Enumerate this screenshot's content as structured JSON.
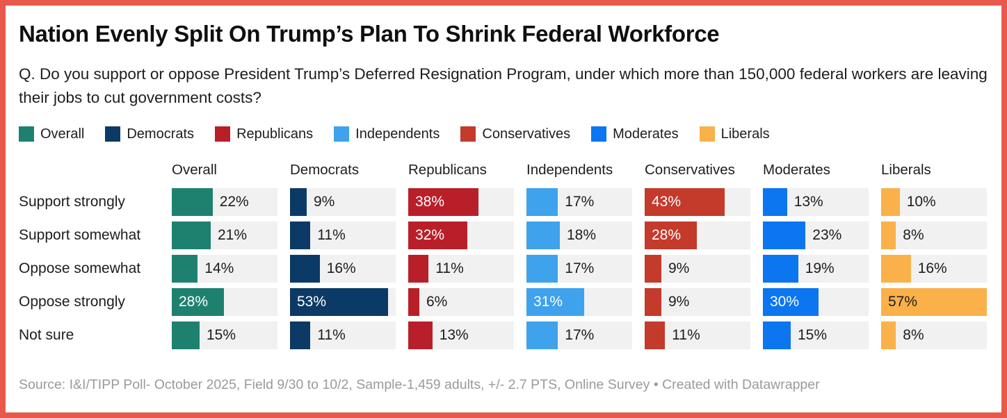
{
  "frame": {
    "border_color": "#e8594a",
    "background": "#ffffff"
  },
  "header": {
    "title": "Nation Evenly Split On Trump’s Plan To Shrink Federal Workforce",
    "question": "Q. Do you support or oppose President Trump’s Deferred Resignation Program, under which more than 150,000 federal workers are leaving their jobs to cut government costs?"
  },
  "chart_data": {
    "type": "bar",
    "layout": "small-multiples-horizontal-bars",
    "title": "Nation Evenly Split On Trump’s Plan To Shrink Federal Workforce",
    "categories": [
      "Support strongly",
      "Support somewhat",
      "Oppose somewhat",
      "Oppose strongly",
      "Not sure"
    ],
    "series": [
      {
        "name": "Overall",
        "color": "#1e8170",
        "inside_label_color": "#ffffff",
        "values": [
          22,
          21,
          14,
          28,
          15
        ]
      },
      {
        "name": "Democrats",
        "color": "#0c3a66",
        "inside_label_color": "#ffffff",
        "values": [
          9,
          11,
          16,
          53,
          11
        ]
      },
      {
        "name": "Republicans",
        "color": "#b91f29",
        "inside_label_color": "#ffffff",
        "values": [
          38,
          32,
          11,
          6,
          13
        ]
      },
      {
        "name": "Independents",
        "color": "#3ea2ed",
        "inside_label_color": "#ffffff",
        "values": [
          17,
          18,
          17,
          31,
          17
        ]
      },
      {
        "name": "Conservatives",
        "color": "#c43a2b",
        "inside_label_color": "#ffffff",
        "values": [
          43,
          28,
          9,
          9,
          11
        ]
      },
      {
        "name": "Moderates",
        "color": "#0b76f0",
        "inside_label_color": "#ffffff",
        "values": [
          13,
          23,
          19,
          30,
          15
        ]
      },
      {
        "name": "Liberals",
        "color": "#fab14a",
        "inside_label_color": "#1d1d1d",
        "values": [
          10,
          8,
          16,
          57,
          8
        ]
      }
    ],
    "value_suffix": "%",
    "xmax": 57,
    "track_color": "#f1f1f1",
    "legend_position": "top",
    "grid": false
  },
  "footer": {
    "source": "Source: I&I/TIPP Poll- October 2025, Field 9/30 to 10/2, Sample-1,459 adults, +/- 2.7 PTS, Online Survey",
    "separator": "•",
    "attribution": "Created with Datawrapper"
  }
}
